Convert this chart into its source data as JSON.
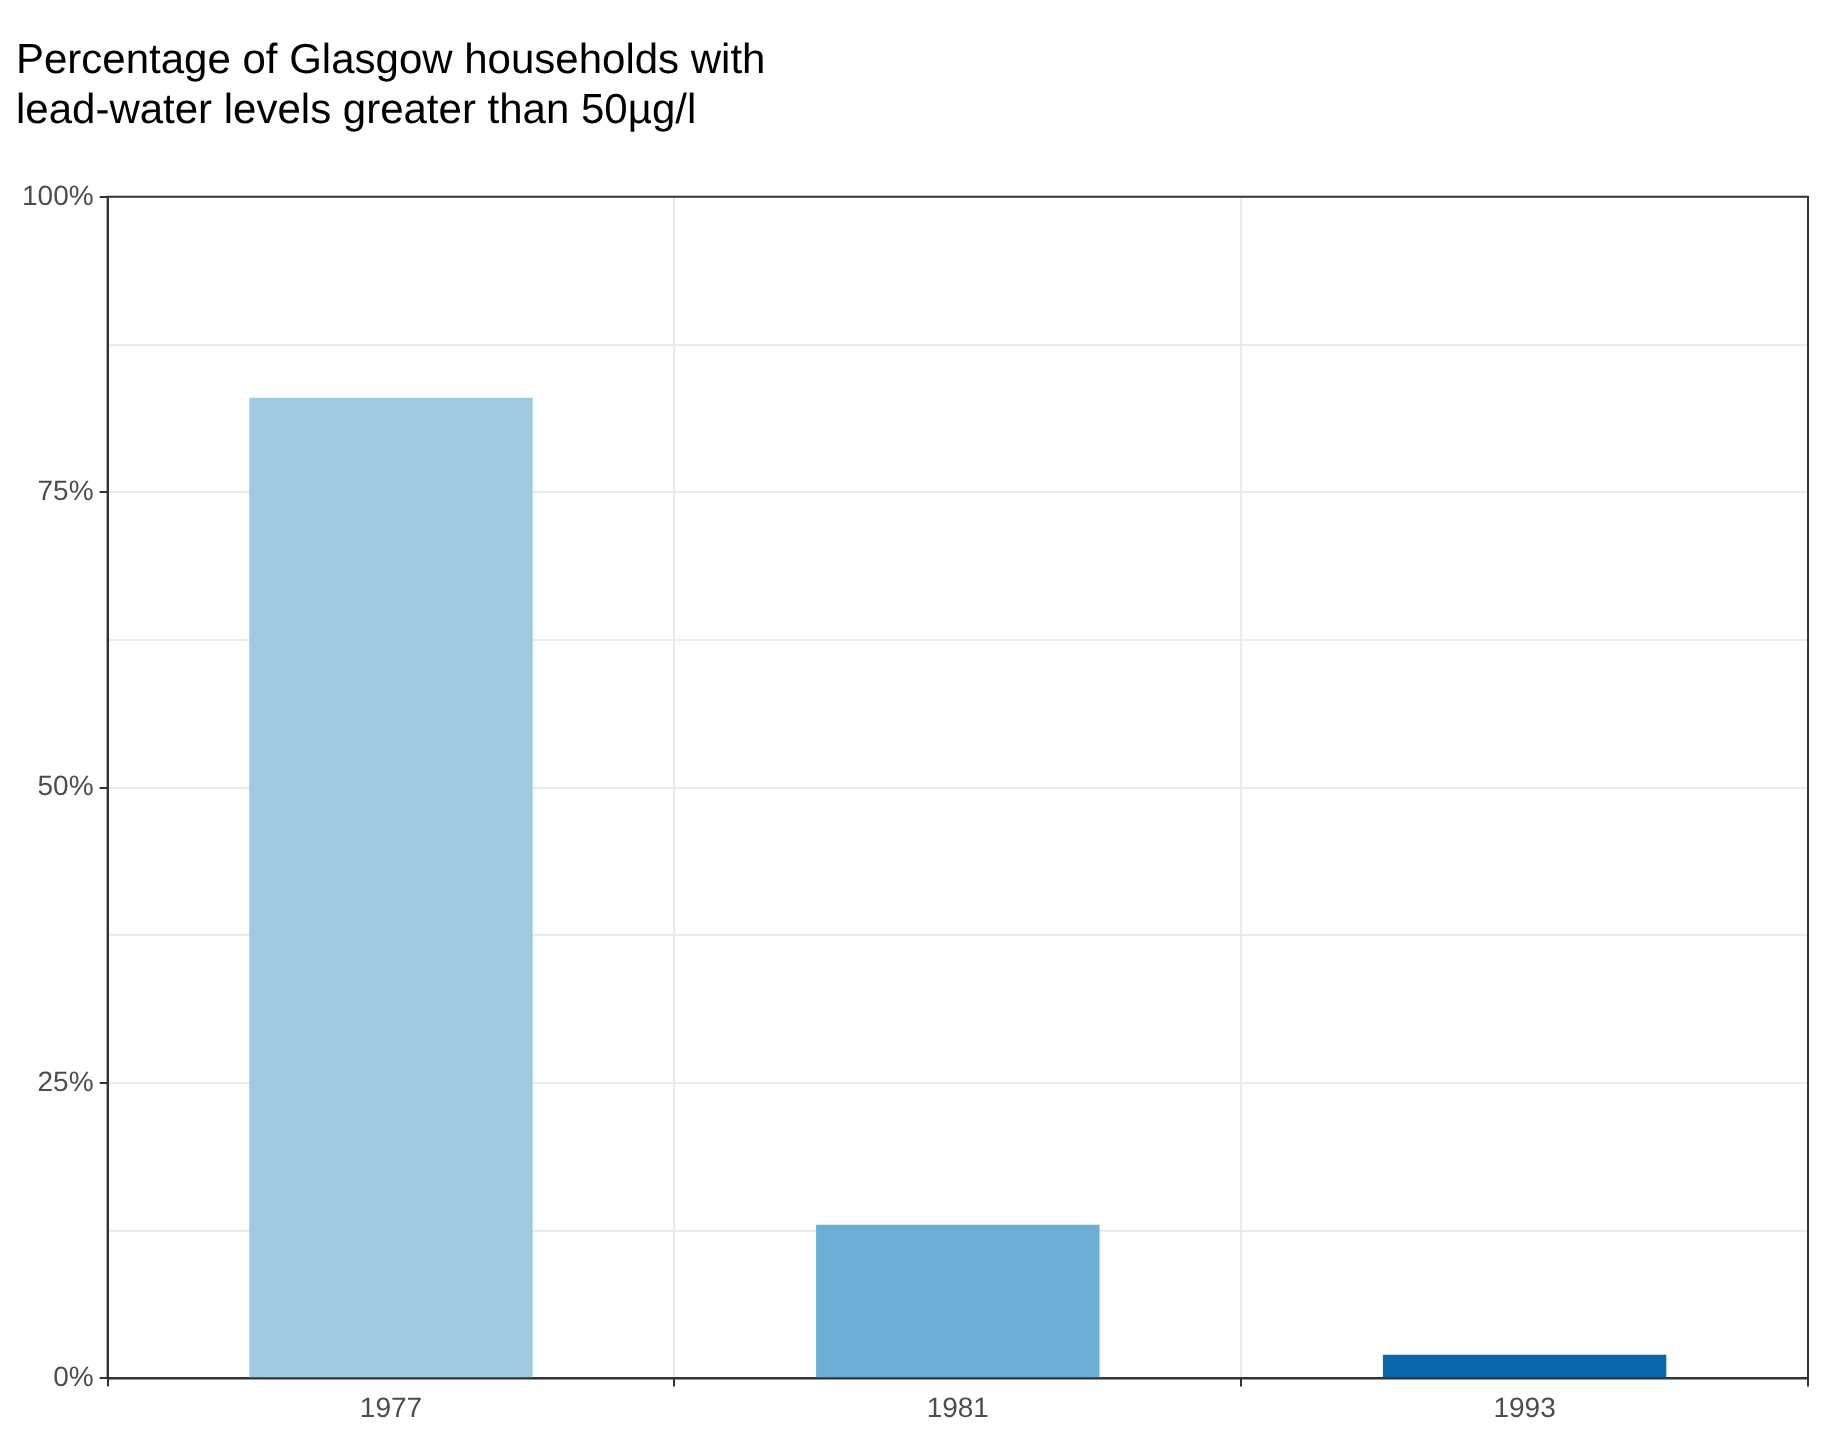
{
  "chart_data": {
    "type": "bar",
    "title": "Percentage of Glasgow households with\nlead-water levels greater than 50µg/l",
    "categories": [
      "1977",
      "1981",
      "1993"
    ],
    "values": [
      83,
      13,
      2
    ],
    "colors": [
      "#9ecae1",
      "#6baed6",
      "#0868ac"
    ],
    "ylim": [
      0,
      100
    ],
    "yticks": [
      {
        "value": 0,
        "label": "0%"
      },
      {
        "value": 12.5,
        "label": null
      },
      {
        "value": 25,
        "label": "25%"
      },
      {
        "value": 37.5,
        "label": null
      },
      {
        "value": 50,
        "label": "50%"
      },
      {
        "value": 62.5,
        "label": null
      },
      {
        "value": 75,
        "label": "75%"
      },
      {
        "value": 87.5,
        "label": null
      },
      {
        "value": 100,
        "label": "100%"
      }
    ],
    "grid": true,
    "legend": false
  }
}
